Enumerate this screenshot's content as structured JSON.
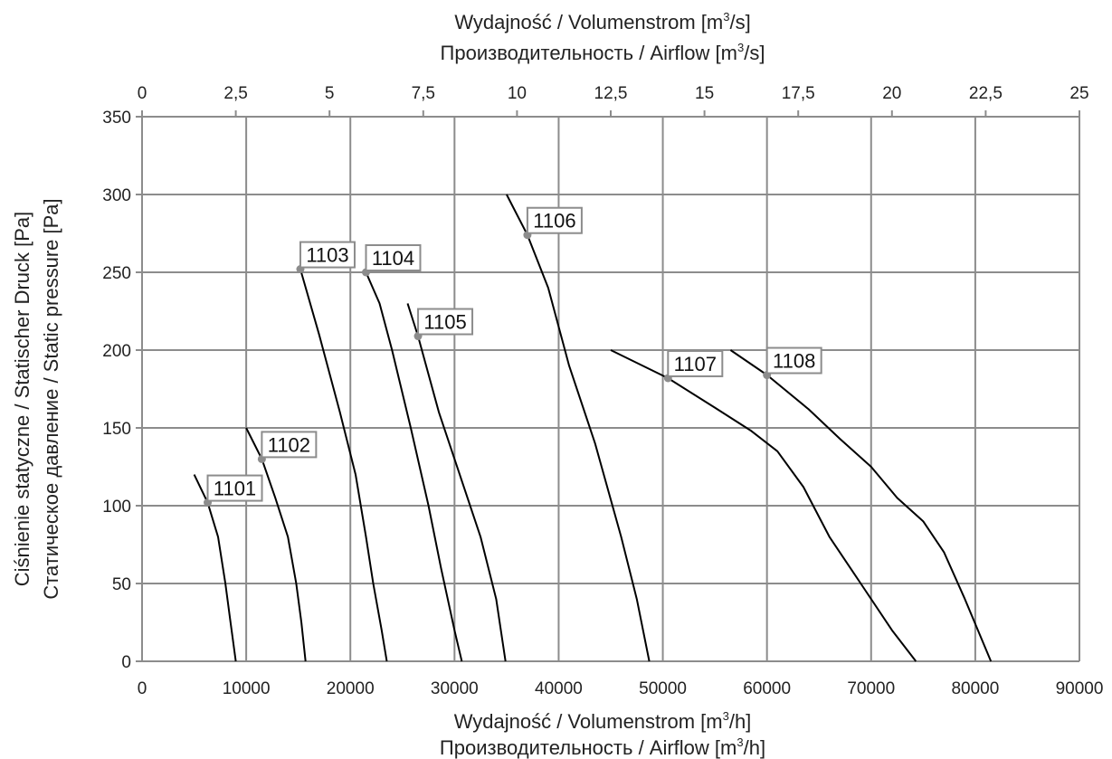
{
  "chart_data": {
    "type": "line",
    "top_axis_title": {
      "line1_prefix": "Wydajność / Volumenstrom [m",
      "line1_sup": "3",
      "line1_suffix": "/s]",
      "line2_prefix": "Производительность / Airflow [m",
      "line2_sup": "3",
      "line2_suffix": "/s]"
    },
    "bottom_axis_title": {
      "line1_prefix": "Wydajność / Volumenstrom [m",
      "line1_sup": "3",
      "line1_suffix": "/h]",
      "line2_prefix": "Производительность / Airflow [m",
      "line2_sup": "3",
      "line2_suffix": "/h]"
    },
    "y_axis_title": {
      "line1": "Ciśnienie statyczne / Statischer Druck [Pa]",
      "line2": "Статическое давление / Static pressure [Pa]"
    },
    "xlim": [
      0,
      90000
    ],
    "ylim": [
      0,
      350
    ],
    "x_ticks": [
      "0",
      "10000",
      "20000",
      "30000",
      "40000",
      "50000",
      "60000",
      "70000",
      "80000",
      "90000"
    ],
    "y_ticks": [
      "0",
      "50",
      "100",
      "150",
      "200",
      "250",
      "300",
      "350"
    ],
    "top_ticks": [
      "0",
      "2,5",
      "5",
      "7,5",
      "10",
      "12,5",
      "15",
      "17,5",
      "20",
      "22,5",
      "25"
    ],
    "grid": true,
    "series": [
      {
        "name": "1101",
        "marker": [
          6300,
          102
        ],
        "points": [
          [
            5000,
            120
          ],
          [
            6300,
            102
          ],
          [
            7300,
            80
          ],
          [
            8000,
            50
          ],
          [
            8500,
            25
          ],
          [
            9000,
            0
          ]
        ]
      },
      {
        "name": "1102",
        "marker": [
          11500,
          130
        ],
        "points": [
          [
            10000,
            150
          ],
          [
            11500,
            130
          ],
          [
            12800,
            105
          ],
          [
            14000,
            80
          ],
          [
            14800,
            50
          ],
          [
            15300,
            25
          ],
          [
            15700,
            0
          ]
        ]
      },
      {
        "name": "1103",
        "marker": [
          15200,
          252
        ],
        "points": [
          [
            15200,
            252
          ],
          [
            17000,
            210
          ],
          [
            19000,
            160
          ],
          [
            20500,
            120
          ],
          [
            21500,
            80
          ],
          [
            22200,
            50
          ],
          [
            23000,
            20
          ],
          [
            23500,
            0
          ]
        ]
      },
      {
        "name": "1104",
        "marker": [
          21500,
          250
        ],
        "points": [
          [
            21500,
            250
          ],
          [
            22800,
            230
          ],
          [
            24000,
            200
          ],
          [
            25800,
            150
          ],
          [
            27500,
            100
          ],
          [
            28700,
            60
          ],
          [
            30000,
            20
          ],
          [
            30700,
            0
          ]
        ]
      },
      {
        "name": "1105",
        "marker": [
          26500,
          209
        ],
        "points": [
          [
            25500,
            230
          ],
          [
            26500,
            209
          ],
          [
            28500,
            160
          ],
          [
            30500,
            120
          ],
          [
            32500,
            80
          ],
          [
            34000,
            40
          ],
          [
            34900,
            0
          ]
        ]
      },
      {
        "name": "1106",
        "marker": [
          37000,
          274
        ],
        "points": [
          [
            35000,
            300
          ],
          [
            37000,
            274
          ],
          [
            39000,
            240
          ],
          [
            41000,
            190
          ],
          [
            43500,
            140
          ],
          [
            46000,
            80
          ],
          [
            47500,
            40
          ],
          [
            48700,
            0
          ]
        ]
      },
      {
        "name": "1107",
        "marker": [
          50500,
          182
        ],
        "points": [
          [
            45000,
            200
          ],
          [
            50500,
            182
          ],
          [
            55000,
            163
          ],
          [
            58500,
            148
          ],
          [
            61000,
            135
          ],
          [
            63500,
            112
          ],
          [
            66000,
            80
          ],
          [
            69000,
            50
          ],
          [
            72000,
            20
          ],
          [
            74300,
            0
          ]
        ]
      },
      {
        "name": "1108",
        "marker": [
          60000,
          184
        ],
        "points": [
          [
            56500,
            200
          ],
          [
            60000,
            184
          ],
          [
            64000,
            162
          ],
          [
            67000,
            143
          ],
          [
            70000,
            125
          ],
          [
            72500,
            105
          ],
          [
            75000,
            90
          ],
          [
            77000,
            70
          ],
          [
            79000,
            40
          ],
          [
            81500,
            0
          ]
        ]
      }
    ],
    "colors": {
      "curve": "#000000",
      "grid": "#8c8c8c",
      "marker": "#8c8c8c",
      "label_border": "#8c8c8c"
    }
  }
}
